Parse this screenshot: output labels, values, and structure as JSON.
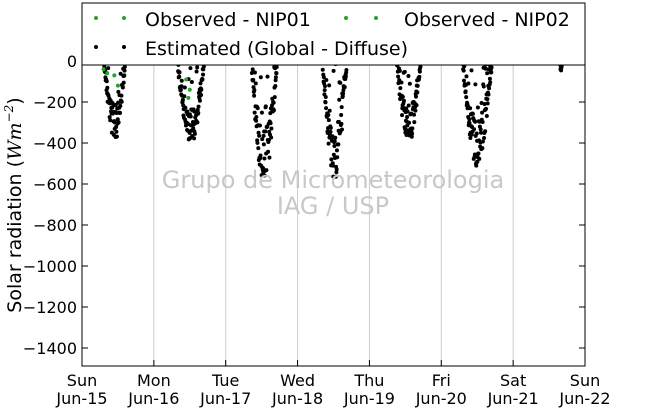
{
  "chart_data": {
    "type": "scatter",
    "title": "",
    "xlabel": "",
    "ylabel_text": "Solar radiation (",
    "ylabel_unit": "Wm",
    "ylabel_exp": "−2",
    "ylabel_close": ")",
    "ylim": [
      -1500,
      0
    ],
    "yticks": [
      0,
      -200,
      -400,
      -600,
      -800,
      -1000,
      -1200,
      -1400
    ],
    "xlim_days": [
      0,
      7
    ],
    "xticks": [
      {
        "day": "Sun",
        "date": "Jun-15"
      },
      {
        "day": "Mon",
        "date": "Jun-16"
      },
      {
        "day": "Tue",
        "date": "Jun-17"
      },
      {
        "day": "Wed",
        "date": "Jun-18"
      },
      {
        "day": "Thu",
        "date": "Jun-19"
      },
      {
        "day": "Fri",
        "date": "Jun-20"
      },
      {
        "day": "Sat",
        "date": "Jun-21"
      },
      {
        "day": "Sun",
        "date": "Jun-22"
      }
    ],
    "grid": "vertical",
    "legend_position": "top",
    "series": [
      {
        "name": "Observed - NIP01",
        "color": "#2ca02c",
        "points": [
          [
            0.3,
            -40
          ],
          [
            0.45,
            -70
          ],
          [
            0.5,
            -120
          ],
          [
            1.45,
            -90
          ],
          [
            1.48,
            -180
          ]
        ]
      },
      {
        "name": "Observed - NIP02",
        "color": "#2ca02c",
        "points": [
          [
            0.35,
            -60
          ],
          [
            1.5,
            -140
          ]
        ]
      },
      {
        "name": "Estimated (Global - Diffuse)",
        "color": "#000000",
        "clusters": [
          {
            "date": "Jun-15",
            "start": 0.31,
            "end": 0.6,
            "peak": -390
          },
          {
            "date": "Jun-16",
            "start": 1.33,
            "end": 1.7,
            "peak": -410
          },
          {
            "date": "Jun-17",
            "start": 2.36,
            "end": 2.71,
            "peak": -610
          },
          {
            "date": "Jun-18",
            "start": 3.35,
            "end": 3.68,
            "peak": -580
          },
          {
            "date": "Jun-19",
            "start": 4.38,
            "end": 4.71,
            "peak": -410
          },
          {
            "date": "Jun-20",
            "start": 5.3,
            "end": 5.7,
            "peak": -520
          },
          {
            "date": "Jun-21",
            "start": 6.65,
            "end": 6.68,
            "peak": -60
          }
        ]
      }
    ],
    "watermark": [
      "Grupo de Micrometeorologia",
      "IAG / USP"
    ]
  }
}
